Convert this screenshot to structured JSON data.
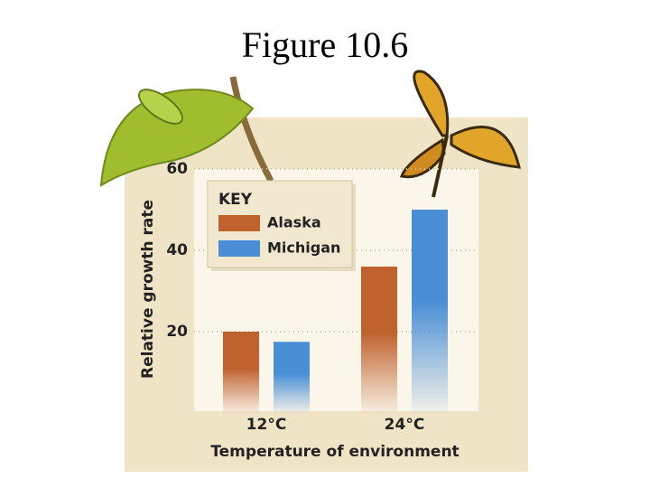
{
  "chart_data": {
    "type": "bar",
    "title": "Figure 10.6",
    "x_label": "Temperature of environment",
    "y_label": "Relative growth rate",
    "legend_title": "KEY",
    "categories": [
      "12°C",
      "24°C"
    ],
    "series": [
      {
        "name": "Alaska",
        "color": "#c0622e",
        "values": [
          20,
          36
        ]
      },
      {
        "name": "Michigan",
        "color": "#4a8fd6",
        "values": [
          17.5,
          50
        ]
      }
    ],
    "ylim": [
      0,
      60
    ],
    "yticks": [
      20,
      40,
      60
    ],
    "grid": true
  }
}
